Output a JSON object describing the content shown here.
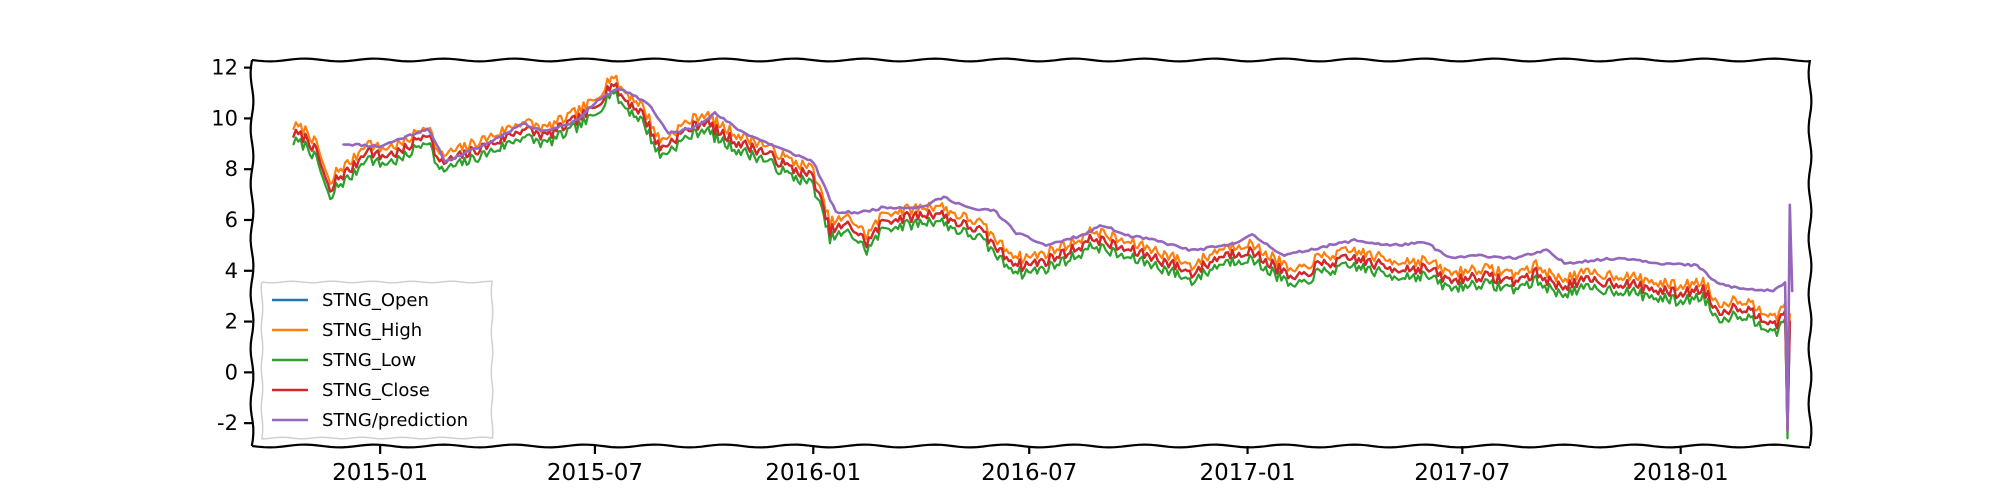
{
  "chart_data": {
    "type": "line",
    "title": "",
    "xlabel": "",
    "ylabel": "",
    "x_range": [
      "2014-09-15",
      "2018-04-20"
    ],
    "ylim": [
      -2.9,
      12.3
    ],
    "grid": false,
    "legend_position": "lower-left",
    "x_ticks": [
      {
        "date": "2015-01-01",
        "label": "2015-01"
      },
      {
        "date": "2015-07-01",
        "label": "2015-07"
      },
      {
        "date": "2016-01-01",
        "label": "2016-01"
      },
      {
        "date": "2016-07-01",
        "label": "2016-07"
      },
      {
        "date": "2017-01-01",
        "label": "2017-01"
      },
      {
        "date": "2017-07-01",
        "label": "2017-07"
      },
      {
        "date": "2018-01-01",
        "label": "2018-01"
      }
    ],
    "y_ticks": [
      {
        "value": 12,
        "label": "12"
      },
      {
        "value": 10,
        "label": "10"
      },
      {
        "value": 8,
        "label": "8"
      },
      {
        "value": 6,
        "label": "6"
      },
      {
        "value": 4,
        "label": "4"
      },
      {
        "value": 2,
        "label": "2"
      },
      {
        "value": 0,
        "label": "0"
      },
      {
        "value": -2,
        "label": "-2"
      }
    ],
    "close_series": [
      [
        "2014-10-20",
        9.4
      ],
      [
        "2014-11-01",
        9.2
      ],
      [
        "2014-11-10",
        8.5
      ],
      [
        "2014-11-20",
        7.0
      ],
      [
        "2014-11-25",
        7.6
      ],
      [
        "2014-12-10",
        8.1
      ],
      [
        "2014-12-20",
        8.8
      ],
      [
        "2015-01-01",
        8.5
      ],
      [
        "2015-01-20",
        8.7
      ],
      [
        "2015-02-10",
        9.5
      ],
      [
        "2015-02-20",
        8.2
      ],
      [
        "2015-03-15",
        8.6
      ],
      [
        "2015-04-10",
        9.1
      ],
      [
        "2015-05-01",
        9.6
      ],
      [
        "2015-05-20",
        9.3
      ],
      [
        "2015-06-10",
        9.8
      ],
      [
        "2015-07-01",
        10.4
      ],
      [
        "2015-07-15",
        11.4
      ],
      [
        "2015-07-25",
        10.8
      ],
      [
        "2015-08-10",
        10.2
      ],
      [
        "2015-08-25",
        8.8
      ],
      [
        "2015-09-15",
        9.5
      ],
      [
        "2015-10-01",
        9.9
      ],
      [
        "2015-10-15",
        9.4
      ],
      [
        "2015-11-01",
        9.0
      ],
      [
        "2015-11-20",
        8.7
      ],
      [
        "2015-12-10",
        8.1
      ],
      [
        "2016-01-01",
        7.7
      ],
      [
        "2016-01-15",
        5.6
      ],
      [
        "2016-02-01",
        5.8
      ],
      [
        "2016-02-15",
        5.1
      ],
      [
        "2016-03-01",
        6.0
      ],
      [
        "2016-03-20",
        6.1
      ],
      [
        "2016-04-15",
        6.3
      ],
      [
        "2016-05-01",
        5.9
      ],
      [
        "2016-05-20",
        5.6
      ],
      [
        "2016-06-10",
        4.6
      ],
      [
        "2016-06-25",
        4.2
      ],
      [
        "2016-07-15",
        4.4
      ],
      [
        "2016-08-10",
        4.9
      ],
      [
        "2016-08-25",
        5.3
      ],
      [
        "2016-09-15",
        4.9
      ],
      [
        "2016-10-10",
        4.6
      ],
      [
        "2016-11-01",
        4.2
      ],
      [
        "2016-11-15",
        3.9
      ],
      [
        "2016-12-10",
        4.6
      ],
      [
        "2017-01-01",
        4.8
      ],
      [
        "2017-01-20",
        4.3
      ],
      [
        "2017-02-10",
        3.6
      ],
      [
        "2017-03-01",
        4.2
      ],
      [
        "2017-04-01",
        4.5
      ],
      [
        "2017-05-01",
        4.1
      ],
      [
        "2017-06-01",
        4.1
      ],
      [
        "2017-06-20",
        3.6
      ],
      [
        "2017-07-15",
        3.8
      ],
      [
        "2017-08-15",
        3.6
      ],
      [
        "2017-09-01",
        3.9
      ],
      [
        "2017-09-20",
        3.4
      ],
      [
        "2017-10-15",
        3.6
      ],
      [
        "2017-11-15",
        3.5
      ],
      [
        "2017-12-15",
        3.2
      ],
      [
        "2018-01-01",
        3.1
      ],
      [
        "2018-01-20",
        3.3
      ],
      [
        "2018-02-01",
        2.4
      ],
      [
        "2018-02-20",
        2.6
      ],
      [
        "2018-03-10",
        2.2
      ],
      [
        "2018-03-25",
        1.9
      ],
      [
        "2018-03-30",
        2.4
      ],
      [
        "2018-04-01",
        -2.3
      ],
      [
        "2018-04-03",
        2.0
      ]
    ],
    "prediction_series": [
      [
        "2014-12-01",
        9.0
      ],
      [
        "2015-01-01",
        8.9
      ],
      [
        "2015-02-10",
        9.6
      ],
      [
        "2015-02-25",
        8.3
      ],
      [
        "2015-04-01",
        9.0
      ],
      [
        "2015-05-01",
        9.8
      ],
      [
        "2015-05-20",
        9.5
      ],
      [
        "2015-06-15",
        9.9
      ],
      [
        "2015-07-01",
        10.6
      ],
      [
        "2015-07-20",
        11.2
      ],
      [
        "2015-08-15",
        10.6
      ],
      [
        "2015-09-01",
        9.4
      ],
      [
        "2015-09-20",
        9.6
      ],
      [
        "2015-10-10",
        10.2
      ],
      [
        "2015-11-01",
        9.5
      ],
      [
        "2015-11-20",
        9.1
      ],
      [
        "2015-12-10",
        8.7
      ],
      [
        "2016-01-01",
        8.3
      ],
      [
        "2016-01-20",
        6.3
      ],
      [
        "2016-02-10",
        6.3
      ],
      [
        "2016-03-01",
        6.5
      ],
      [
        "2016-04-01",
        6.5
      ],
      [
        "2016-04-20",
        6.9
      ],
      [
        "2016-05-15",
        6.4
      ],
      [
        "2016-06-01",
        6.4
      ],
      [
        "2016-06-20",
        5.5
      ],
      [
        "2016-07-15",
        5.0
      ],
      [
        "2016-08-15",
        5.4
      ],
      [
        "2016-09-01",
        5.8
      ],
      [
        "2016-09-20",
        5.4
      ],
      [
        "2016-10-15",
        5.2
      ],
      [
        "2016-11-15",
        4.8
      ],
      [
        "2016-12-15",
        5.0
      ],
      [
        "2017-01-05",
        5.4
      ],
      [
        "2017-02-01",
        4.6
      ],
      [
        "2017-03-01",
        4.9
      ],
      [
        "2017-04-01",
        5.2
      ],
      [
        "2017-05-01",
        5.0
      ],
      [
        "2017-06-01",
        5.1
      ],
      [
        "2017-06-20",
        4.5
      ],
      [
        "2017-07-15",
        4.6
      ],
      [
        "2017-08-15",
        4.5
      ],
      [
        "2017-09-10",
        4.8
      ],
      [
        "2017-09-25",
        4.3
      ],
      [
        "2017-10-15",
        4.4
      ],
      [
        "2017-11-15",
        4.5
      ],
      [
        "2017-12-15",
        4.3
      ],
      [
        "2018-01-15",
        4.2
      ],
      [
        "2018-02-01",
        3.5
      ],
      [
        "2018-02-20",
        3.3
      ],
      [
        "2018-03-20",
        3.2
      ],
      [
        "2018-03-30",
        3.5
      ],
      [
        "2018-04-01",
        -2.3
      ],
      [
        "2018-04-03",
        6.6
      ],
      [
        "2018-04-05",
        3.2
      ]
    ],
    "series": [
      {
        "name": "STNG_Open",
        "color": "#1f77b4",
        "offset": 0.0
      },
      {
        "name": "STNG_High",
        "color": "#ff7f0e",
        "offset": 0.3
      },
      {
        "name": "STNG_Low",
        "color": "#2ca02c",
        "offset": -0.3
      },
      {
        "name": "STNG_Close",
        "color": "#d62728",
        "offset": 0.0
      },
      {
        "name": "STNG/prediction",
        "color": "#9467bd",
        "offset": 0.0
      }
    ]
  }
}
